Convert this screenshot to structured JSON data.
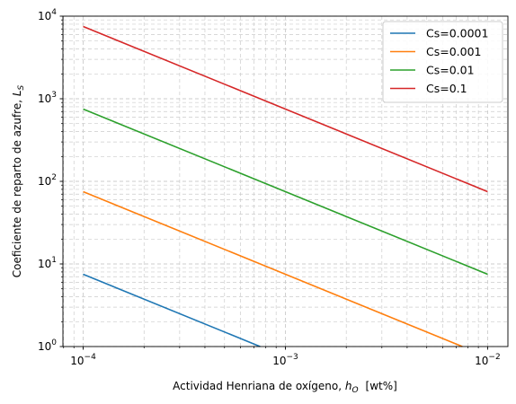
{
  "chart_data": {
    "type": "line",
    "x_scale": "log",
    "y_scale": "log",
    "xlim": [
      7.94e-05,
      0.0126
    ],
    "ylim": [
      1,
      10000
    ],
    "xlabel": "Actividad Henriana de oxígeno, h_O  [wt%]",
    "xlabel_parts": {
      "main": "Actividad Henriana de oxígeno, ",
      "sym": "h",
      "sub": "O",
      "unit": "[wt%]"
    },
    "ylabel": "Coeficiente de reparto de azufre, L_S",
    "ylabel_parts": {
      "main": "Coeficiente de reparto de azufre, ",
      "sym": "L",
      "sub": "S"
    },
    "x_major_ticks": [
      {
        "value": 0.0001,
        "base": "10",
        "exp": "−4"
      },
      {
        "value": 0.001,
        "base": "10",
        "exp": "−3"
      },
      {
        "value": 0.01,
        "base": "10",
        "exp": "−2"
      }
    ],
    "y_major_ticks": [
      {
        "value": 1,
        "base": "10",
        "exp": "0"
      },
      {
        "value": 10,
        "base": "10",
        "exp": "1"
      },
      {
        "value": 100,
        "base": "10",
        "exp": "2"
      },
      {
        "value": 1000,
        "base": "10",
        "exp": "3"
      },
      {
        "value": 10000,
        "base": "10",
        "exp": "4"
      }
    ],
    "grid": true,
    "legend_position": "top-right",
    "series": [
      {
        "name": "Cs=0.0001",
        "color": "#1f77b4",
        "x": [
          0.0001,
          0.00075
        ],
        "y": [
          7.5,
          1.0
        ]
      },
      {
        "name": "Cs=0.001",
        "color": "#ff7f0e",
        "x": [
          0.0001,
          0.0075
        ],
        "y": [
          75,
          1.0
        ]
      },
      {
        "name": "Cs=0.01",
        "color": "#2ca02c",
        "x": [
          0.0001,
          0.01
        ],
        "y": [
          750,
          7.5
        ]
      },
      {
        "name": "Cs=0.1",
        "color": "#d62728",
        "x": [
          0.0001,
          0.01
        ],
        "y": [
          7500,
          75
        ]
      }
    ]
  }
}
